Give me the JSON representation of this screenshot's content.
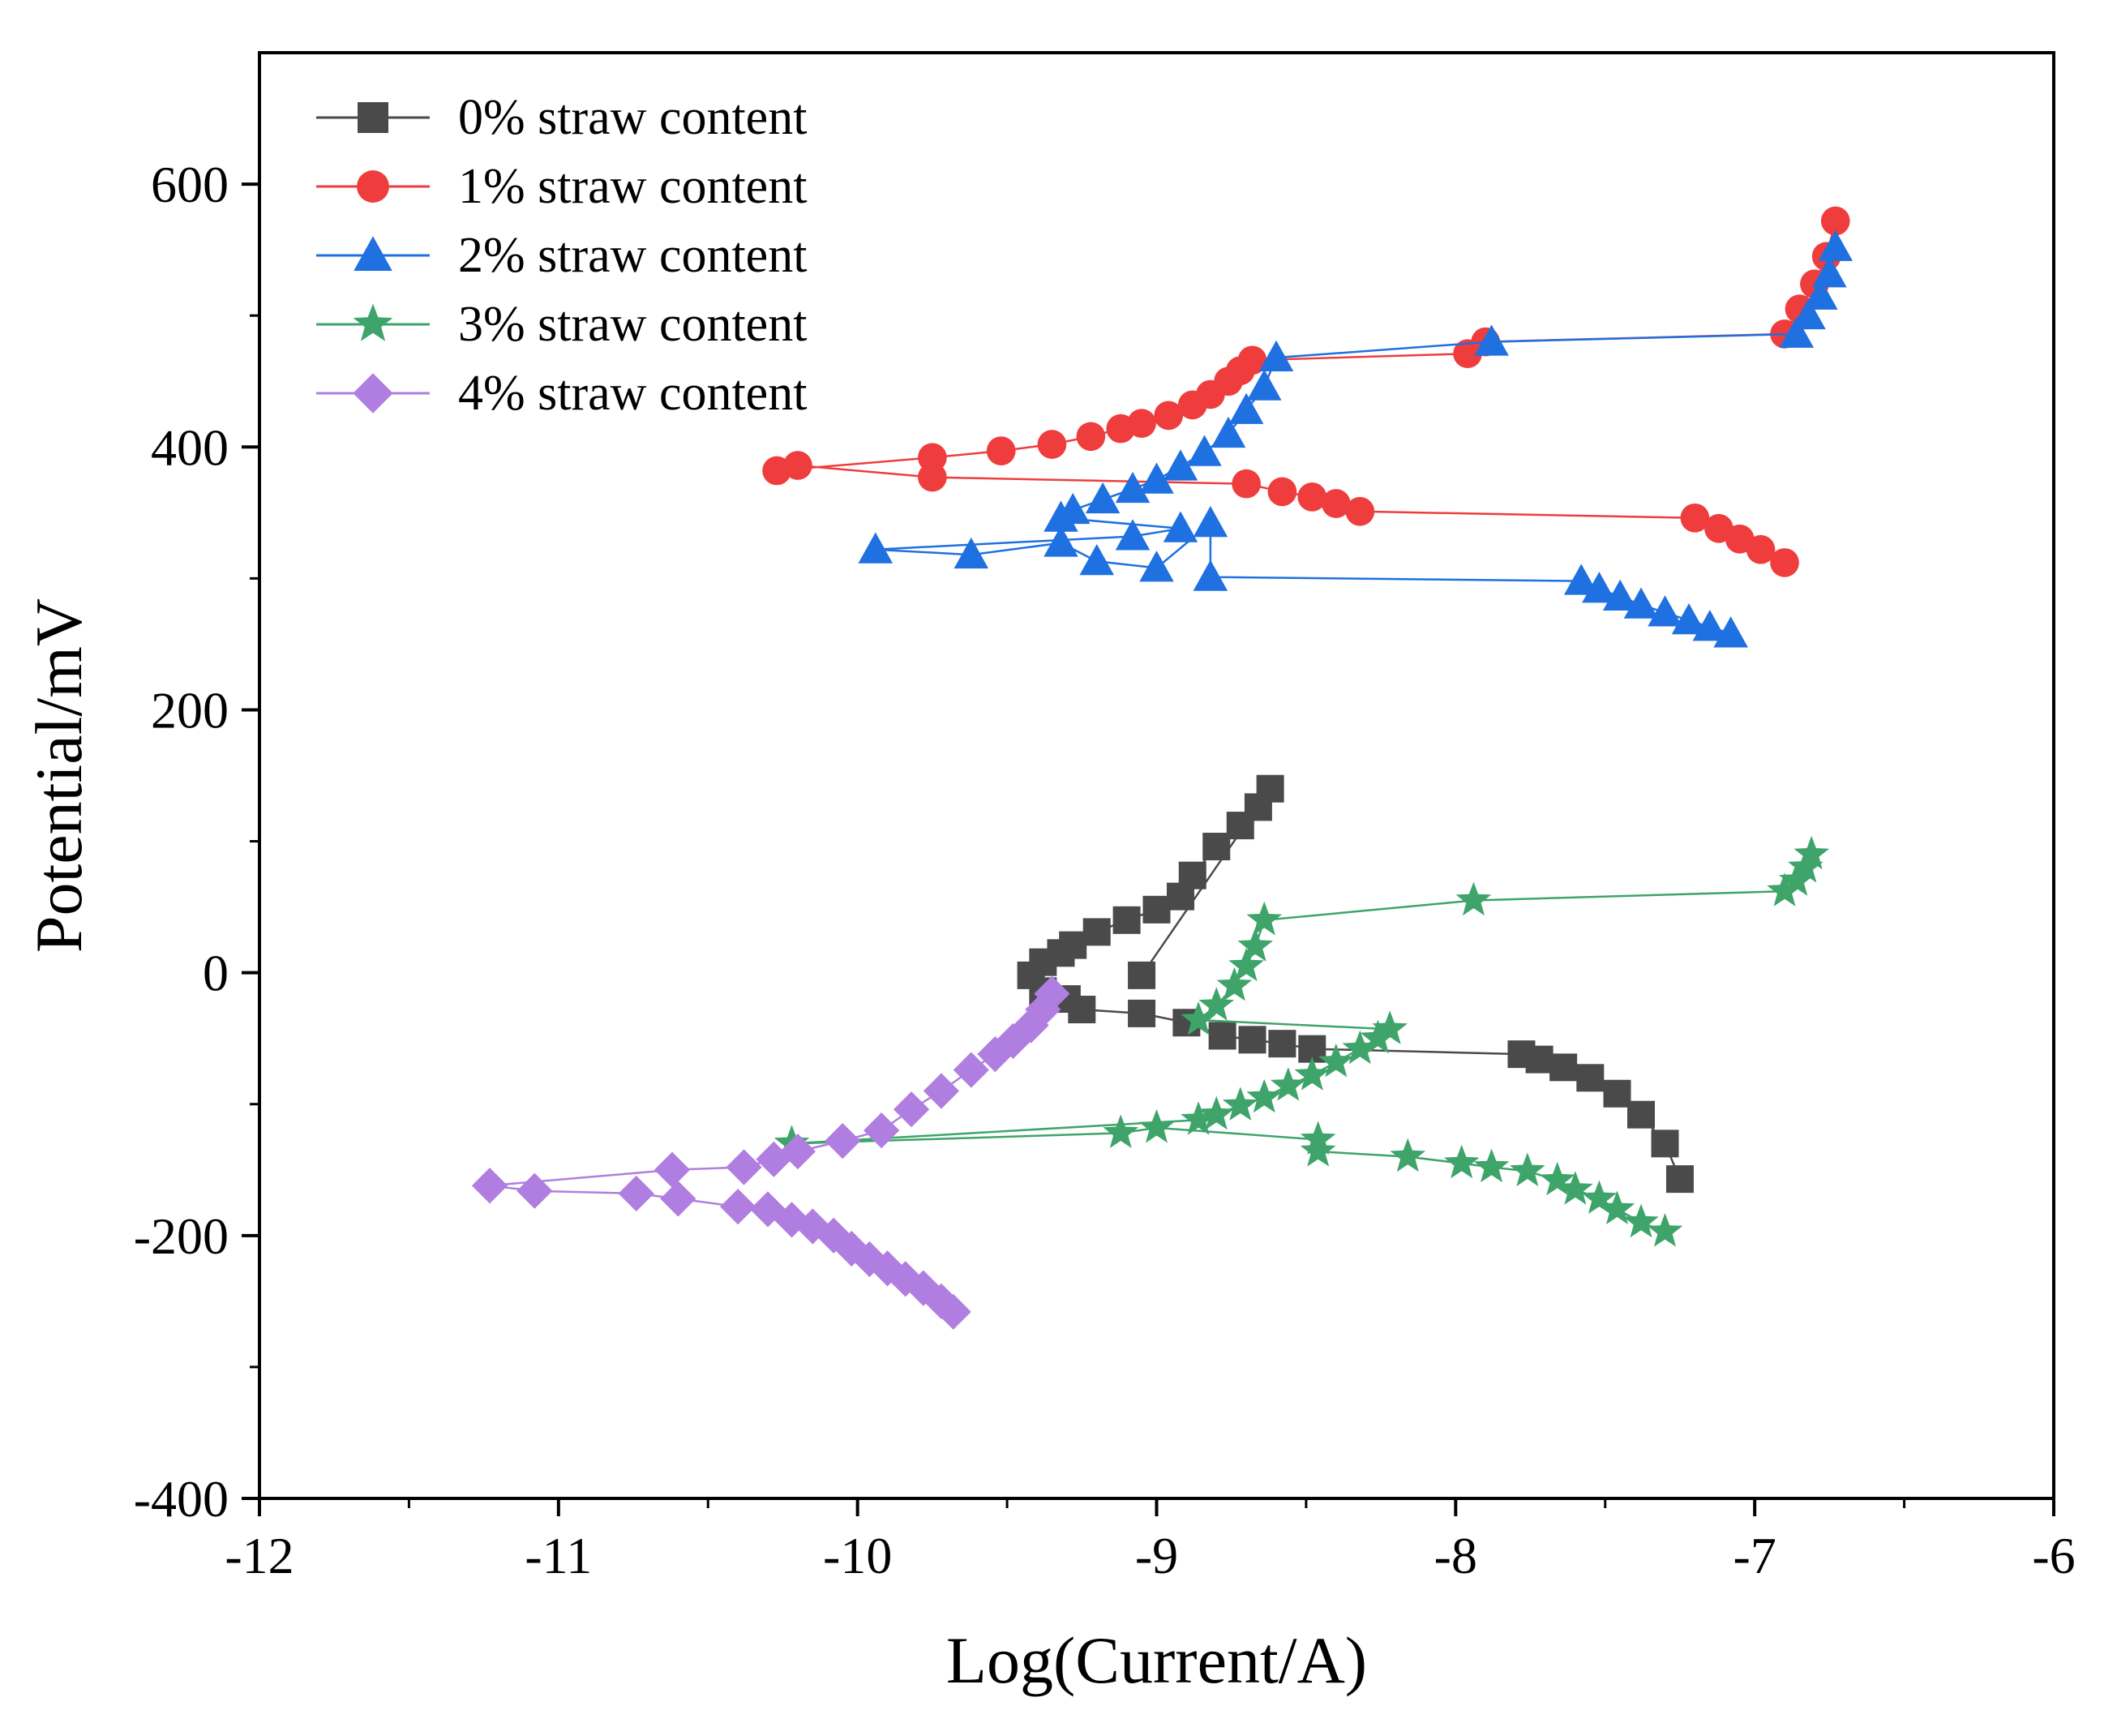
{
  "chart_data": {
    "type": "scatter",
    "title": "",
    "xlabel": "Log(Current/A)",
    "ylabel": "Potential/mV",
    "xlim": [
      -12,
      -6
    ],
    "ylim": [
      -400,
      700
    ],
    "x_ticks": [
      -12,
      -11,
      -10,
      -9,
      -8,
      -7,
      -6
    ],
    "x_tick_labels": [
      "-12",
      "-11",
      "-10",
      "-9",
      "-8",
      "-7",
      "-6"
    ],
    "y_ticks": [
      -400,
      -200,
      0,
      200,
      400,
      600
    ],
    "y_tick_labels": [
      "-400",
      "-200",
      "0",
      "200",
      "400",
      "600"
    ],
    "grid": false,
    "legend_position": "top-left",
    "series": [
      {
        "name": "0% straw content",
        "marker": "square",
        "color": "#4a4a4a",
        "x": [
          -7.25,
          -7.3,
          -7.38,
          -7.46,
          -7.55,
          -7.64,
          -7.72,
          -7.78,
          -8.48,
          -8.58,
          -8.68,
          -8.78,
          -8.9,
          -9.05,
          -9.25,
          -9.3,
          -9.38,
          -9.42,
          -9.38,
          -9.32,
          -9.28,
          -9.2,
          -9.1,
          -9.0,
          -8.92,
          -8.88,
          -8.8,
          -8.72,
          -8.66,
          -8.62,
          -9.05
        ],
        "y": [
          -157,
          -130,
          -108,
          -92,
          -80,
          -72,
          -66,
          -62,
          -58,
          -54,
          -51,
          -48,
          -38,
          -31,
          -28,
          -20,
          -14,
          -2,
          8,
          15,
          21,
          31,
          40,
          48,
          58,
          74,
          96,
          112,
          126,
          140,
          -2
        ]
      },
      {
        "name": "1% straw content",
        "marker": "circle",
        "color": "#ef3d3d",
        "x": [
          -6.9,
          -6.98,
          -7.05,
          -7.12,
          -7.2,
          -8.32,
          -8.4,
          -8.48,
          -8.58,
          -8.7,
          -9.75,
          -10.2,
          -10.27,
          -9.75,
          -9.52,
          -9.35,
          -9.22,
          -9.12,
          -9.05,
          -8.96,
          -8.88,
          -8.82,
          -8.76,
          -8.72,
          -8.68,
          -7.96,
          -7.9,
          -6.9,
          -6.85,
          -6.8,
          -6.76,
          -6.73
        ],
        "y": [
          312,
          322,
          330,
          338,
          346,
          351,
          357,
          362,
          366,
          372,
          377,
          386,
          382,
          392,
          397,
          402,
          408,
          414,
          418,
          424,
          432,
          440,
          450,
          458,
          466,
          471,
          480,
          486,
          505,
          524,
          545,
          572
        ]
      },
      {
        "name": "2% straw content",
        "marker": "triangle",
        "color": "#1f70e0",
        "x": [
          -7.08,
          -7.15,
          -7.22,
          -7.3,
          -7.38,
          -7.45,
          -7.52,
          -7.58,
          -8.82,
          -8.82,
          -9.0,
          -9.2,
          -9.32,
          -9.62,
          -9.94,
          -9.08,
          -8.92,
          -9.32,
          -9.28,
          -9.18,
          -9.08,
          -9.0,
          -8.92,
          -8.84,
          -8.76,
          -8.7,
          -8.64,
          -8.6,
          -7.88,
          -6.86,
          -6.82,
          -6.78,
          -6.75,
          -6.73
        ],
        "y": [
          258,
          263,
          268,
          274,
          280,
          286,
          292,
          298,
          301,
          342,
          308,
          313,
          327,
          318,
          322,
          332,
          338,
          346,
          352,
          360,
          368,
          375,
          385,
          396,
          410,
          428,
          446,
          468,
          480,
          486,
          500,
          515,
          532,
          552
        ]
      },
      {
        "name": "3% straw content",
        "marker": "star",
        "color": "#3ea46a",
        "x": [
          -7.3,
          -7.38,
          -7.46,
          -7.52,
          -7.6,
          -7.66,
          -7.76,
          -7.88,
          -7.98,
          -8.16,
          -8.46,
          -8.46,
          -9.0,
          -9.12,
          -10.22,
          -8.86,
          -8.8,
          -8.72,
          -8.64,
          -8.56,
          -8.48,
          -8.4,
          -8.32,
          -8.26,
          -8.22,
          -8.86,
          -8.8,
          -8.74,
          -8.7,
          -8.67,
          -8.64,
          -7.94,
          -6.9,
          -6.86,
          -6.83,
          -6.81
        ],
        "y": [
          -197,
          -190,
          -180,
          -172,
          -165,
          -158,
          -151,
          -148,
          -145,
          -140,
          -136,
          -127,
          -118,
          -122,
          -130,
          -112,
          -108,
          -101,
          -95,
          -86,
          -78,
          -68,
          -58,
          -50,
          -43,
          -36,
          -25,
          -10,
          5,
          20,
          40,
          55,
          62,
          70,
          80,
          90
        ]
      },
      {
        "name": "4% straw content",
        "marker": "diamond",
        "color": "#b07ee0",
        "x": [
          -9.68,
          -9.72,
          -9.78,
          -9.84,
          -9.9,
          -9.96,
          -10.02,
          -10.08,
          -10.15,
          -10.22,
          -10.3,
          -10.4,
          -10.6,
          -10.74,
          -11.08,
          -11.23,
          -10.62,
          -10.38,
          -10.28,
          -10.2,
          -10.05,
          -9.92,
          -9.82,
          -9.72,
          -9.62,
          -9.54,
          -9.48,
          -9.42,
          -9.38,
          -9.35
        ],
        "y": [
          -258,
          -250,
          -240,
          -233,
          -225,
          -218,
          -210,
          -200,
          -193,
          -188,
          -180,
          -178,
          -172,
          -168,
          -166,
          -162,
          -150,
          -148,
          -142,
          -136,
          -128,
          -120,
          -104,
          -90,
          -74,
          -62,
          -52,
          -40,
          -28,
          -16
        ]
      }
    ]
  }
}
